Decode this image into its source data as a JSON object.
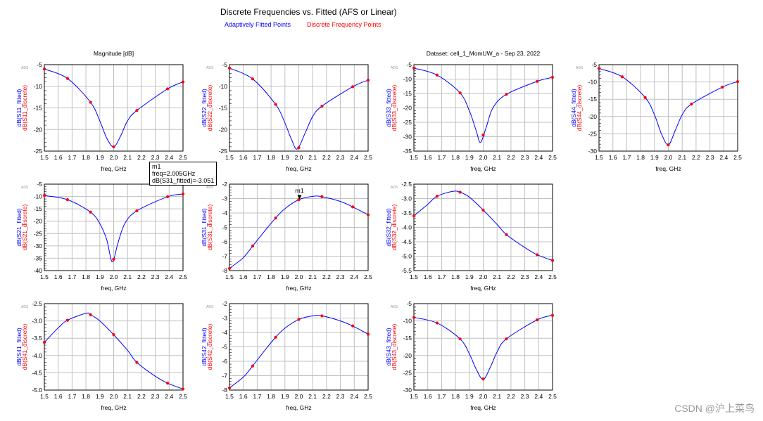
{
  "header": {
    "title": "Discrete Frequencies vs. Fitted (AFS or Linear)",
    "legend_fitted": "Adaptively Fitted Points",
    "legend_discrete": "Discrete Frequency Points"
  },
  "colors": {
    "fitted": "#0000ff",
    "discrete": "#ff0000",
    "grid": "#c0c0c0"
  },
  "marker": {
    "name": "m1",
    "line1": "m1",
    "line2": "freq=2.005GHz",
    "line3": "dB(S31_fitted)=-3.051",
    "x": 2.005,
    "y": -3.051,
    "plot": "S31"
  },
  "watermark": "CSDN @沪上菜鸟",
  "chart_data": [
    {
      "type": "line",
      "param": "S11",
      "title": "Magnitude [dB]",
      "badge": "ADS",
      "xlabel": "freq, GHz",
      "ylabel_fitted": "dB(S11_fitted)",
      "ylabel_discrete": "dB(S11_discrete)",
      "xlim": [
        1.5,
        2.5
      ],
      "ylim": [
        -25,
        -5
      ],
      "ystep": 5,
      "ytick_decimals": 0,
      "discrete": {
        "x": [
          1.5,
          1.667,
          1.833,
          2.0,
          2.167,
          2.389,
          2.5
        ],
        "y": [
          -6.0,
          -8.2,
          -13.7,
          -24.0,
          -15.6,
          -10.6,
          -9.0
        ]
      },
      "fitted": {
        "x": [
          1.5,
          1.667,
          1.833,
          1.9,
          1.95,
          2.0,
          2.05,
          2.1,
          2.167,
          2.389,
          2.5
        ],
        "y": [
          -6.0,
          -8.2,
          -13.7,
          -18.0,
          -22.0,
          -24.0,
          -21.5,
          -18.0,
          -15.6,
          -10.6,
          -9.0
        ]
      }
    },
    {
      "type": "line",
      "param": "S22",
      "title": "",
      "badge": "ADS",
      "xlabel": "freq, GHz",
      "ylabel_fitted": "dB(S22_fitted)",
      "ylabel_discrete": "dB(S22_discrete)",
      "xlim": [
        1.5,
        2.5
      ],
      "ylim": [
        -25,
        -5
      ],
      "ystep": 5,
      "ytick_decimals": 0,
      "discrete": {
        "x": [
          1.5,
          1.667,
          1.833,
          2.0,
          2.167,
          2.389,
          2.5
        ],
        "y": [
          -5.8,
          -8.3,
          -14.2,
          -24.2,
          -14.6,
          -10.1,
          -8.6
        ]
      },
      "fitted": {
        "x": [
          1.5,
          1.667,
          1.833,
          1.9,
          1.95,
          1.99,
          2.05,
          2.1,
          2.167,
          2.389,
          2.5
        ],
        "y": [
          -5.8,
          -8.3,
          -14.2,
          -18.5,
          -22.5,
          -24.5,
          -20.5,
          -17.0,
          -14.6,
          -10.1,
          -8.6
        ]
      }
    },
    {
      "type": "line",
      "param": "S33",
      "title": "Dataset: cell_1_MomUW_a - Sep 23, 2022",
      "badge": "ADS",
      "xlabel": "freq, GHz",
      "ylabel_fitted": "dB(S33_fitted)",
      "ylabel_discrete": "dB(S33_discrete)",
      "xlim": [
        1.5,
        2.5
      ],
      "ylim": [
        -35,
        -5
      ],
      "ystep": 5,
      "ytick_decimals": 0,
      "discrete": {
        "x": [
          1.5,
          1.667,
          1.833,
          2.0,
          2.167,
          2.389,
          2.5
        ],
        "y": [
          -6.2,
          -8.6,
          -14.8,
          -29.4,
          -15.3,
          -10.8,
          -9.4
        ]
      },
      "fitted": {
        "x": [
          1.5,
          1.667,
          1.833,
          1.9,
          1.95,
          1.98,
          2.02,
          2.07,
          2.167,
          2.389,
          2.5
        ],
        "y": [
          -6.2,
          -8.6,
          -14.8,
          -21.0,
          -28.0,
          -32.0,
          -27.0,
          -20.0,
          -15.3,
          -10.8,
          -9.4
        ]
      }
    },
    {
      "type": "line",
      "param": "S44",
      "title": "",
      "badge": "ADS",
      "xlabel": "freq, GHz",
      "ylabel_fitted": "dB(S44_fitted)",
      "ylabel_discrete": "dB(S44_discrete)",
      "xlim": [
        1.5,
        2.5
      ],
      "ylim": [
        -30,
        -5
      ],
      "ystep": 5,
      "ytick_decimals": 0,
      "discrete": {
        "x": [
          1.5,
          1.667,
          1.833,
          2.0,
          2.167,
          2.389,
          2.5
        ],
        "y": [
          -6.1,
          -8.5,
          -14.5,
          -28.2,
          -16.4,
          -11.5,
          -9.9
        ]
      },
      "fitted": {
        "x": [
          1.5,
          1.667,
          1.833,
          1.9,
          1.95,
          2.0,
          2.05,
          2.1,
          2.167,
          2.389,
          2.5
        ],
        "y": [
          -6.1,
          -8.5,
          -14.5,
          -19.5,
          -25.0,
          -28.2,
          -24.0,
          -19.5,
          -16.4,
          -11.5,
          -9.9
        ]
      }
    },
    {
      "type": "line",
      "param": "S21",
      "title": "",
      "badge": "ADS",
      "xlabel": "freq, GHz",
      "ylabel_fitted": "dB(S21_fitted)",
      "ylabel_discrete": "dB(S21_discrete)",
      "xlim": [
        1.5,
        2.5
      ],
      "ylim": [
        -40,
        -5
      ],
      "ystep": 5,
      "ytick_decimals": 0,
      "discrete": {
        "x": [
          1.5,
          1.667,
          1.833,
          2.0,
          2.167,
          2.389,
          2.5
        ],
        "y": [
          -9.6,
          -11.3,
          -16.3,
          -35.4,
          -15.8,
          -10.1,
          -9.0
        ]
      },
      "fitted": {
        "x": [
          1.5,
          1.667,
          1.833,
          1.9,
          1.95,
          1.99,
          2.03,
          2.08,
          2.167,
          2.389,
          2.5
        ],
        "y": [
          -9.6,
          -11.3,
          -16.3,
          -21.0,
          -27.5,
          -36.5,
          -29.0,
          -21.0,
          -15.8,
          -10.1,
          -9.0
        ]
      }
    },
    {
      "type": "line",
      "param": "S31",
      "title": "",
      "badge": "ADS",
      "xlabel": "freq, GHz",
      "ylabel_fitted": "dB(S31_fitted)",
      "ylabel_discrete": "dB(S31_discrete)",
      "xlim": [
        1.5,
        2.5
      ],
      "ylim": [
        -8,
        -2
      ],
      "ystep": 1,
      "ytick_decimals": 0,
      "discrete": {
        "x": [
          1.5,
          1.667,
          1.833,
          2.0,
          2.167,
          2.389,
          2.5
        ],
        "y": [
          -7.85,
          -6.3,
          -4.35,
          -3.08,
          -2.87,
          -3.58,
          -4.13
        ]
      },
      "fitted": {
        "x": [
          1.5,
          1.6,
          1.667,
          1.75,
          1.833,
          1.9,
          2.0,
          2.1,
          2.167,
          2.3,
          2.389,
          2.5
        ],
        "y": [
          -7.85,
          -7.1,
          -6.3,
          -5.3,
          -4.35,
          -3.7,
          -3.08,
          -2.85,
          -2.87,
          -3.2,
          -3.58,
          -4.13
        ]
      }
    },
    {
      "type": "line",
      "param": "S32",
      "title": "",
      "badge": "ADS",
      "xlabel": "freq, GHz",
      "ylabel_fitted": "dB(S32_fitted)",
      "ylabel_discrete": "dB(S32_discrete)",
      "xlim": [
        1.5,
        2.5
      ],
      "ylim": [
        -5.5,
        -2.5
      ],
      "ystep": 0.5,
      "ytick_decimals": 1,
      "discrete": {
        "x": [
          1.5,
          1.667,
          1.833,
          2.0,
          2.167,
          2.389,
          2.5
        ],
        "y": [
          -3.6,
          -2.92,
          -2.78,
          -3.4,
          -4.25,
          -4.95,
          -5.15
        ]
      },
      "fitted": {
        "x": [
          1.5,
          1.6,
          1.667,
          1.78,
          1.833,
          1.9,
          2.0,
          2.1,
          2.167,
          2.3,
          2.389,
          2.5
        ],
        "y": [
          -3.6,
          -3.2,
          -2.92,
          -2.75,
          -2.78,
          -2.95,
          -3.4,
          -3.9,
          -4.25,
          -4.7,
          -4.95,
          -5.15
        ]
      }
    },
    {
      "type": "line",
      "param": "S41",
      "title": "",
      "badge": "ADS",
      "xlabel": "freq, GHz",
      "ylabel_fitted": "dB(S41_fitted)",
      "ylabel_discrete": "dB(S41_discrete)",
      "xlim": [
        1.5,
        2.5
      ],
      "ylim": [
        -5,
        -2.5
      ],
      "ystep": 0.5,
      "ytick_decimals": 1,
      "discrete": {
        "x": [
          1.5,
          1.667,
          1.833,
          2.0,
          2.167,
          2.389,
          2.5
        ],
        "y": [
          -3.62,
          -2.98,
          -2.82,
          -3.4,
          -4.2,
          -4.8,
          -4.97
        ]
      },
      "fitted": {
        "x": [
          1.5,
          1.6,
          1.667,
          1.8,
          1.833,
          1.9,
          2.0,
          2.1,
          2.167,
          2.3,
          2.389,
          2.5
        ],
        "y": [
          -3.62,
          -3.2,
          -2.98,
          -2.78,
          -2.82,
          -3.0,
          -3.4,
          -3.85,
          -4.2,
          -4.6,
          -4.8,
          -4.97
        ]
      }
    },
    {
      "type": "line",
      "param": "S42",
      "title": "",
      "badge": "ADS",
      "xlabel": "freq, GHz",
      "ylabel_fitted": "dB(S42_fitted)",
      "ylabel_discrete": "dB(S42_discrete)",
      "xlim": [
        1.5,
        2.5
      ],
      "ylim": [
        -8,
        -2
      ],
      "ystep": 1,
      "ytick_decimals": 0,
      "discrete": {
        "x": [
          1.5,
          1.667,
          1.833,
          2.0,
          2.167,
          2.389,
          2.5
        ],
        "y": [
          -7.85,
          -6.33,
          -4.33,
          -3.1,
          -2.85,
          -3.55,
          -4.12
        ]
      },
      "fitted": {
        "x": [
          1.5,
          1.6,
          1.667,
          1.75,
          1.833,
          1.9,
          2.0,
          2.1,
          2.167,
          2.3,
          2.389,
          2.5
        ],
        "y": [
          -7.85,
          -7.1,
          -6.33,
          -5.3,
          -4.33,
          -3.7,
          -3.1,
          -2.85,
          -2.85,
          -3.2,
          -3.55,
          -4.12
        ]
      }
    },
    {
      "type": "line",
      "param": "S43",
      "title": "",
      "badge": "ADS",
      "xlabel": "freq, GHz",
      "ylabel_fitted": "dB(S43_fitted)",
      "ylabel_discrete": "dB(S43_discrete)",
      "xlim": [
        1.5,
        2.5
      ],
      "ylim": [
        -30,
        -5
      ],
      "ystep": 5,
      "ytick_decimals": 0,
      "discrete": {
        "x": [
          1.5,
          1.667,
          1.833,
          2.0,
          2.167,
          2.389,
          2.5
        ],
        "y": [
          -9.0,
          -10.6,
          -15.2,
          -26.8,
          -15.2,
          -9.7,
          -8.4
        ]
      },
      "fitted": {
        "x": [
          1.5,
          1.667,
          1.833,
          1.9,
          1.95,
          2.0,
          2.05,
          2.1,
          2.167,
          2.389,
          2.5
        ],
        "y": [
          -9.0,
          -10.6,
          -15.2,
          -19.5,
          -24.0,
          -26.9,
          -23.5,
          -19.0,
          -15.2,
          -9.7,
          -8.4
        ]
      }
    }
  ]
}
